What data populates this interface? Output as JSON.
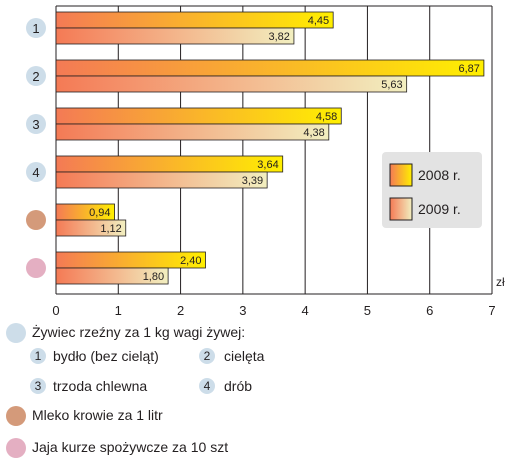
{
  "chart_data": {
    "type": "bar",
    "orientation": "horizontal",
    "unit": "zł",
    "xlim": [
      0,
      7
    ],
    "xticks": [
      "0",
      "1",
      "2",
      "3",
      "4",
      "5",
      "6",
      "7"
    ],
    "grid": true,
    "legend_position": "right",
    "categories": [
      {
        "badge": "1",
        "badge_color": "#cddde9"
      },
      {
        "badge": "2",
        "badge_color": "#cddde9"
      },
      {
        "badge": "3",
        "badge_color": "#cddde9"
      },
      {
        "badge": "4",
        "badge_color": "#cddde9"
      },
      {
        "badge": "",
        "badge_color": "#d49a7a"
      },
      {
        "badge": "",
        "badge_color": "#e4afc2"
      }
    ],
    "series": [
      {
        "name": "2008 r.",
        "values": [
          4.45,
          6.87,
          4.58,
          3.64,
          0.94,
          2.4
        ],
        "labels": [
          "4,45",
          "6,87",
          "4,58",
          "3,64",
          "0,94",
          "2,40"
        ],
        "color_start": "#f47a55",
        "color_end": "#ffef00"
      },
      {
        "name": "2009 r.",
        "values": [
          3.82,
          5.63,
          4.38,
          3.39,
          1.12,
          1.8
        ],
        "labels": [
          "3,82",
          "5,63",
          "4,38",
          "3,39",
          "1,12",
          "1,80"
        ],
        "color_start": "#f47a55",
        "color_end": "#f2efc0"
      }
    ]
  },
  "notes": {
    "livestock": {
      "text": "Żywiec rzeźny za 1 kg wagi żywej:",
      "color": "#cddde9"
    },
    "sub_items": [
      {
        "num": "1",
        "text": "bydło (bez cieląt)"
      },
      {
        "num": "2",
        "text": "cielęta"
      },
      {
        "num": "3",
        "text": "trzoda chlewna"
      },
      {
        "num": "4",
        "text": "drób"
      }
    ],
    "milk": {
      "text": "Mleko krowie za 1 litr",
      "color": "#d49a7a"
    },
    "eggs": {
      "text": "Jaja kurze spożywcze za 10 szt",
      "color": "#e4afc2"
    }
  }
}
